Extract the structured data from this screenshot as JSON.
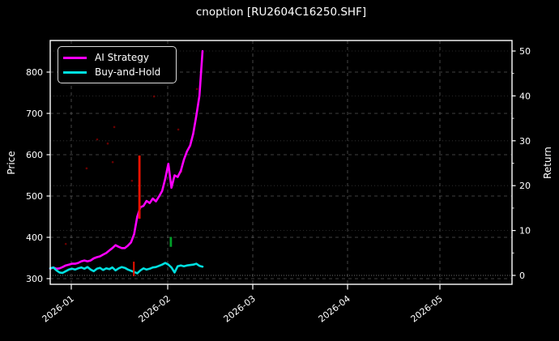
{
  "title": "cnoption [RU2604C16250.SHF]",
  "axes": {
    "left_label": "Price",
    "right_label": "Return",
    "left_ticks": [
      300,
      400,
      500,
      600,
      700,
      800
    ],
    "right_ticks": [
      0,
      10,
      20,
      30,
      40,
      50
    ],
    "right_minor_ticks": [
      5,
      15,
      25,
      35,
      45
    ],
    "x_tick_labels": [
      "2026-01",
      "2026-02",
      "2026-03",
      "2026-04",
      "2026-05"
    ]
  },
  "legend": {
    "items": [
      {
        "label": "AI Strategy",
        "color": "#ff00ff"
      },
      {
        "label": "Buy-and-Hold",
        "color": "#00e0e0"
      }
    ]
  },
  "chart_data": {
    "type": "line",
    "title": "cnoption [RU2604C16250.SHF]",
    "x_start_date": "2025-12-25",
    "x_frequency": "daily",
    "x_tick_labels": [
      "2026-01",
      "2026-02",
      "2026-03",
      "2026-04",
      "2026-05"
    ],
    "ylabel_left": "Price",
    "ylabel_right": "Return",
    "ylim_left": [
      286,
      876
    ],
    "ylim_right": [
      -2,
      52
    ],
    "grid": true,
    "legend_position": "upper left",
    "background_color": "#000000",
    "series": [
      {
        "name": "AI Strategy",
        "color": "#ff00ff",
        "values": [
          324,
          327,
          324,
          325,
          328,
          332,
          334,
          336,
          336,
          338,
          342,
          344,
          342,
          344,
          349,
          352,
          354,
          358,
          362,
          368,
          374,
          381,
          377,
          374,
          374,
          380,
          388,
          408,
          450,
          473,
          476,
          488,
          483,
          494,
          487,
          499,
          512,
          542,
          578,
          520,
          550,
          546,
          561,
          588,
          608,
          622,
          651,
          694,
          743,
          851
        ]
      },
      {
        "name": "Buy-and-Hold",
        "color": "#00e0e0",
        "values": [
          325,
          327,
          320,
          315,
          314,
          318,
          322,
          324,
          322,
          325,
          327,
          324,
          328,
          322,
          318,
          324,
          326,
          321,
          325,
          323,
          327,
          320,
          325,
          328,
          326,
          322,
          319,
          316,
          313,
          320,
          325,
          322,
          324,
          327,
          328,
          331,
          334,
          338,
          334,
          327,
          315,
          330,
          332,
          330,
          332,
          333,
          334,
          336,
          331,
          329
        ]
      }
    ],
    "markers": [
      {
        "type": "vline",
        "color": "#ee1100",
        "day_index": 28.7,
        "price_from": 445,
        "price_to": 598,
        "width": 2.8
      },
      {
        "type": "vtick",
        "color": "#ee1100",
        "day_index": 26.9,
        "price_from": 306,
        "price_to": 341,
        "width": 2
      },
      {
        "type": "vtick",
        "color": "#00a028",
        "day_index": 38.8,
        "price_from": 377,
        "price_to": 401,
        "width": 2.8
      }
    ],
    "signal_dots": [
      {
        "day_index": 5.0,
        "price": 384
      },
      {
        "day_index": 11.7,
        "price": 567
      },
      {
        "day_index": 15.1,
        "price": 637
      },
      {
        "day_index": 18.5,
        "price": 627
      },
      {
        "day_index": 20.1,
        "price": 582
      },
      {
        "day_index": 20.6,
        "price": 667
      },
      {
        "day_index": 26.3,
        "price": 537
      },
      {
        "day_index": 33.4,
        "price": 741
      },
      {
        "day_index": 41.2,
        "price": 661
      },
      {
        "day_index": 42.2,
        "price": 559
      },
      {
        "day_index": 47.2,
        "price": 759
      }
    ]
  }
}
